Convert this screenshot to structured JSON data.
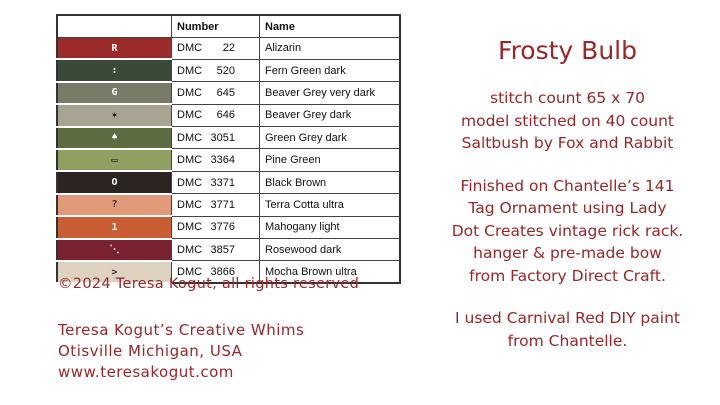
{
  "table": {
    "headers": [
      "",
      "Number",
      "Name"
    ],
    "rows": [
      {
        "symbol": "R",
        "color": "#9b2a2b",
        "symbol_color": "#ffffff",
        "prefix": "DMC",
        "number": "22",
        "name": "Alizarin"
      },
      {
        "symbol": ":",
        "color": "#3b4a38",
        "symbol_color": "#ffffff",
        "prefix": "DMC",
        "number": "520",
        "name": "Fern Green dark"
      },
      {
        "symbol": "G",
        "color": "#7a7a68",
        "symbol_color": "#ffffff",
        "prefix": "DMC",
        "number": "645",
        "name": "Beaver Grey very dark"
      },
      {
        "symbol": "✶",
        "color": "#a9a392",
        "symbol_color": "#111111",
        "prefix": "DMC",
        "number": "646",
        "name": "Beaver Grey dark"
      },
      {
        "symbol": "♠",
        "color": "#5d6b40",
        "symbol_color": "#ffffff",
        "prefix": "DMC",
        "number": "3051",
        "name": "Green Grey dark"
      },
      {
        "symbol": "▭",
        "color": "#8fa062",
        "symbol_color": "#111111",
        "prefix": "DMC",
        "number": "3364",
        "name": "Pine Green"
      },
      {
        "symbol": "O",
        "color": "#2b2422",
        "symbol_color": "#ffffff",
        "prefix": "DMC",
        "number": "3371",
        "name": "Black Brown"
      },
      {
        "symbol": "?",
        "color": "#e09a7a",
        "symbol_color": "#333333",
        "prefix": "DMC",
        "number": "3771",
        "name": "Terra Cotta ultra"
      },
      {
        "symbol": "1",
        "color": "#c95d34",
        "symbol_color": "#ffffff",
        "prefix": "DMC",
        "number": "3776",
        "name": "Mahogany light"
      },
      {
        "symbol": "⋱",
        "color": "#7a2230",
        "symbol_color": "#ffffff",
        "prefix": "DMC",
        "number": "3857",
        "name": "Rosewood dark"
      },
      {
        "symbol": ">",
        "color": "#ddd1c0",
        "symbol_color": "#333333",
        "prefix": "DMC",
        "number": "3866",
        "name": "Mocha Brown ultra"
      }
    ]
  },
  "copyright": "©2024 Teresa Kogut, all rights reserved",
  "signature": [
    "Teresa Kogut’s Creative Whims",
    "Otisville Michigan, USA",
    "www.teresakogut.com"
  ],
  "title": "Frosty Bulb",
  "paragraphs": [
    [
      "stitch count 65 x 70",
      "model stitched on 40 count",
      "Saltbush by Fox and Rabbit"
    ],
    [
      "Finished on Chantelle’s 141",
      "Tag Ornament using Lady",
      "Dot Creates vintage rick rack.",
      "hanger & pre-made bow",
      "from Factory Direct Craft."
    ],
    [
      "I used Carnival Red DIY paint",
      "from Chantelle."
    ]
  ],
  "text_color": "#9a2628"
}
